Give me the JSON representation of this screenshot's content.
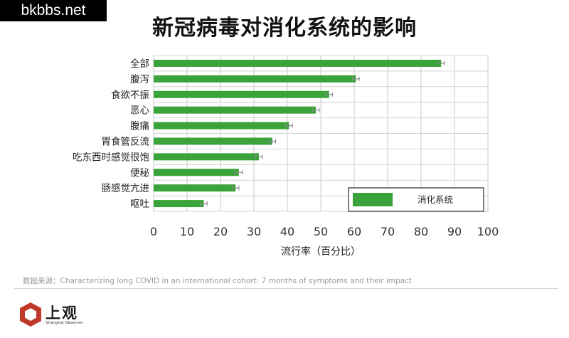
{
  "watermark": "bkbbs.net",
  "chart_data": {
    "type": "bar",
    "orientation": "horizontal",
    "title": "新冠病毒对消化系统的影响",
    "xlabel": "流行率（百分比）",
    "ylabel": "",
    "xlim": [
      0,
      100
    ],
    "xticks": [
      0,
      10,
      20,
      30,
      40,
      50,
      60,
      70,
      80,
      90,
      100
    ],
    "grid": true,
    "error_bars": true,
    "legend_position": "bottom-right",
    "categories": [
      "全部",
      "腹泻",
      "食欲不振",
      "恶心",
      "腹痛",
      "胃食管反流",
      "吃东西时感觉很饱",
      "便秘",
      "肠感觉亢进",
      "呕吐"
    ],
    "series": [
      {
        "name": "消化系统",
        "color": "#3aa33a",
        "values": [
          86,
          60.5,
          52.5,
          48.5,
          40.5,
          35.5,
          31.5,
          25.5,
          24.5,
          15
        ],
        "error": [
          1,
          1,
          1,
          1,
          1,
          1,
          1,
          1,
          1,
          1
        ]
      }
    ]
  },
  "source": "数据来源：Characterizing long COVID in an international cohort: 7 months of symptoms and their impact",
  "logo": {
    "name": "上观",
    "subtitle": "Shanghai Observer",
    "color": "#c0392b"
  }
}
